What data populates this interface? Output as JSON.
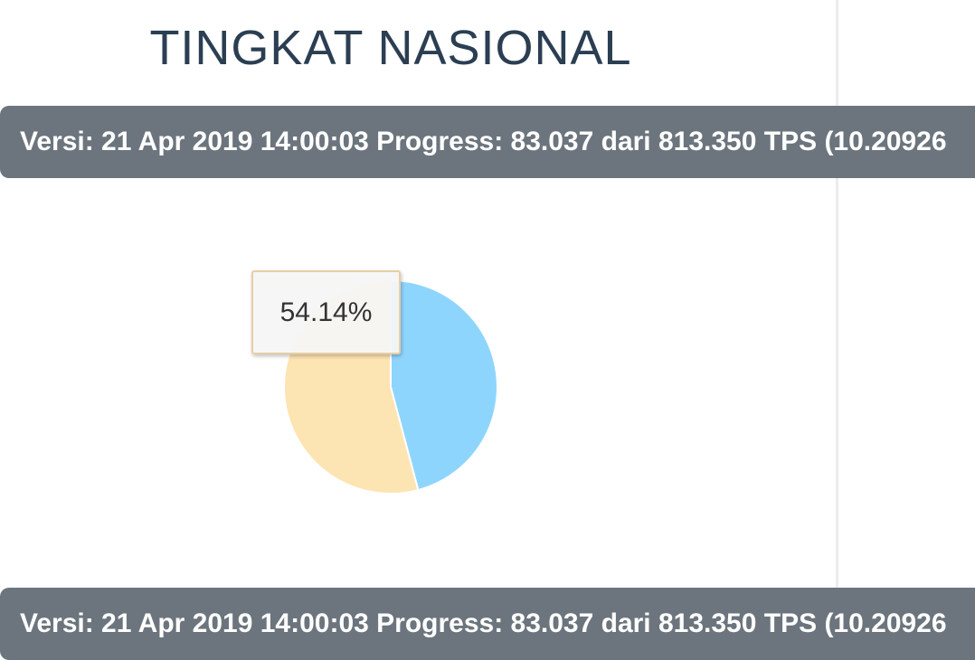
{
  "header": {
    "title": "TINGKAT NASIONAL"
  },
  "banners": [
    "Versi: 21 Apr 2019 14:00:03 Progress: 83.037 dari 813.350 TPS (10.20926",
    "Versi: 21 Apr 2019 14:00:03 Progress: 83.037 dari 813.350 TPS (10.20926"
  ],
  "chart_data": {
    "type": "pie",
    "values": [
      45.86,
      54.14
    ],
    "colors": [
      "#8ed5fd",
      "#fde4b3"
    ],
    "value_labels": [
      null,
      "54.14%"
    ]
  }
}
